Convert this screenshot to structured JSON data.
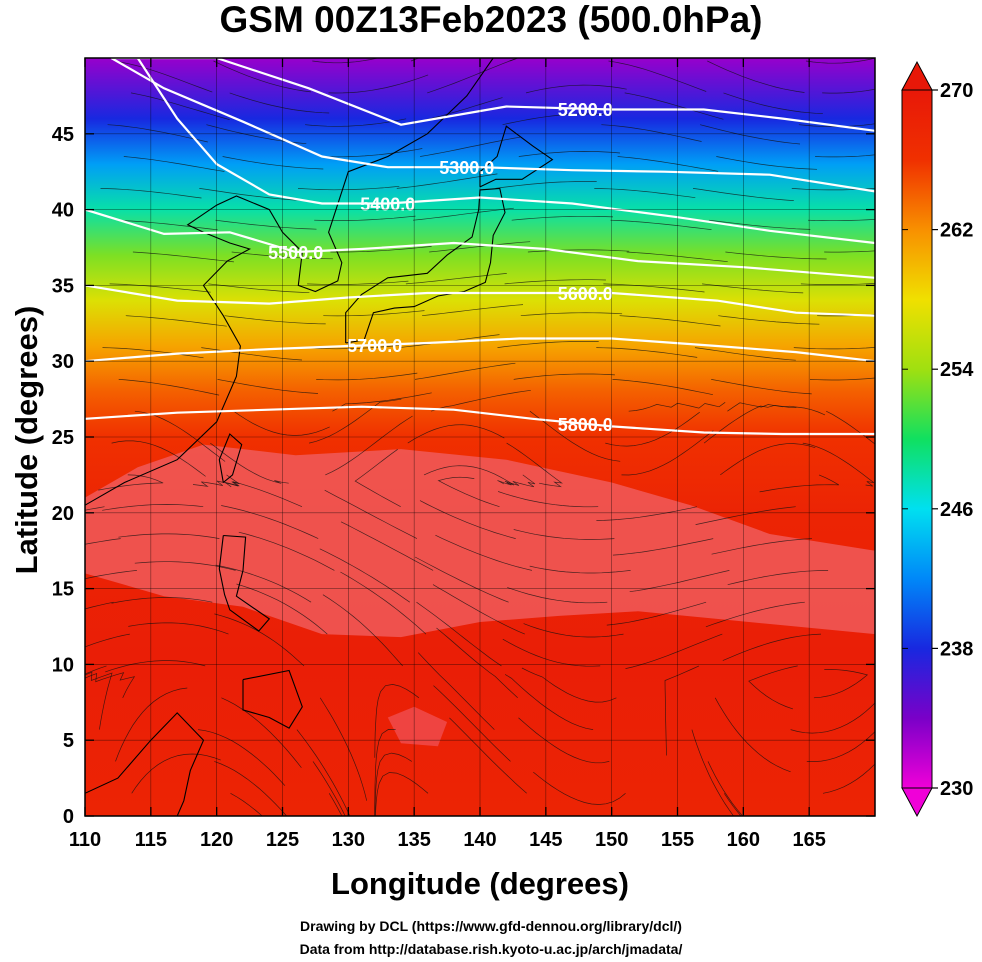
{
  "title": "GSM 00Z13Feb2023 (500.0hPa)",
  "xlabel": "Longitude (degrees)",
  "ylabel": "Latitude  (degrees)",
  "credits": [
    "Drawing by DCL (https://www.gfd-dennou.org/library/dcl/)",
    "Data from http://database.rish.kyoto-u.ac.jp/arch/jmadata/"
  ],
  "chart_data": {
    "type": "heatmap",
    "title": "GSM 00Z13Feb2023 (500.0hPa)",
    "xlabel": "Longitude (degrees)",
    "ylabel": "Latitude  (degrees)",
    "xlim": [
      110,
      170
    ],
    "ylim": [
      0,
      50
    ],
    "x_ticks": [
      110,
      115,
      120,
      125,
      130,
      135,
      140,
      145,
      150,
      155,
      160,
      165
    ],
    "y_ticks": [
      0,
      5,
      10,
      15,
      20,
      25,
      30,
      35,
      40,
      45
    ],
    "grid": true,
    "field": "temperature",
    "colorbar": {
      "min": 230,
      "max": 270,
      "ticks": [
        230,
        238,
        246,
        254,
        262,
        270
      ],
      "colors": [
        "#f000d8",
        "#7a00c8",
        "#1828e0",
        "#0088f8",
        "#00e0f0",
        "#10e060",
        "#a0e010",
        "#f0e000",
        "#f89000",
        "#f03000",
        "#e81808"
      ]
    },
    "temperature_bands": [
      {
        "lat": 0,
        "value": 268
      },
      {
        "lat": 10,
        "value": 269
      },
      {
        "lat": 20,
        "value": 268
      },
      {
        "lat": 25,
        "value": 266
      },
      {
        "lat": 28,
        "value": 264
      },
      {
        "lat": 31,
        "value": 261
      },
      {
        "lat": 34,
        "value": 257
      },
      {
        "lat": 37,
        "value": 253
      },
      {
        "lat": 40,
        "value": 248
      },
      {
        "lat": 43,
        "value": 243
      },
      {
        "lat": 46,
        "value": 238
      },
      {
        "lat": 50,
        "value": 233
      }
    ],
    "contours": [
      {
        "label": "5200.0",
        "label_lon": 148,
        "points": [
          [
            112,
            50
          ],
          [
            120,
            50
          ],
          [
            127,
            48
          ],
          [
            134,
            45.6
          ],
          [
            142,
            46.8
          ],
          [
            150,
            46.6
          ],
          [
            157,
            46.6
          ],
          [
            163,
            46.0
          ],
          [
            170,
            45.2
          ]
        ]
      },
      {
        "label": "5300.0",
        "label_lon": 139,
        "points": [
          [
            112,
            50
          ],
          [
            116,
            48
          ],
          [
            122,
            45.8
          ],
          [
            128,
            43.5
          ],
          [
            133,
            42.8
          ],
          [
            140,
            42.8
          ],
          [
            147,
            42.6
          ],
          [
            154,
            42.5
          ],
          [
            162,
            42.3
          ],
          [
            170,
            41.2
          ]
        ]
      },
      {
        "label": "5400.0",
        "label_lon": 133,
        "points": [
          [
            114,
            50
          ],
          [
            117,
            46
          ],
          [
            120,
            43
          ],
          [
            124,
            41
          ],
          [
            128,
            40.4
          ],
          [
            133,
            40.4
          ],
          [
            140,
            40.8
          ],
          [
            147,
            40.4
          ],
          [
            155,
            39.5
          ],
          [
            162,
            38.6
          ],
          [
            170,
            37.8
          ]
        ]
      },
      {
        "label": "5500.0",
        "label_lon": 126,
        "points": [
          [
            110,
            40
          ],
          [
            116,
            38.4
          ],
          [
            121,
            38.5
          ],
          [
            126,
            37.2
          ],
          [
            131,
            37.4
          ],
          [
            138,
            37.8
          ],
          [
            145,
            37.4
          ],
          [
            152,
            36.6
          ],
          [
            160,
            36.2
          ],
          [
            170,
            35.5
          ]
        ]
      },
      {
        "label": "5600.0",
        "label_lon": 148,
        "points": [
          [
            110,
            35.0
          ],
          [
            117,
            34.0
          ],
          [
            124,
            33.8
          ],
          [
            130,
            34.2
          ],
          [
            136,
            34.5
          ],
          [
            142,
            34.5
          ],
          [
            150,
            34.5
          ],
          [
            158,
            34.0
          ],
          [
            164,
            33.2
          ],
          [
            170,
            33.0
          ]
        ]
      },
      {
        "label": "5700.0",
        "label_lon": 132,
        "points": [
          [
            110,
            30.0
          ],
          [
            117,
            30.5
          ],
          [
            124,
            30.8
          ],
          [
            130,
            31.0
          ],
          [
            136,
            31.2
          ],
          [
            143,
            31.5
          ],
          [
            150,
            31.5
          ],
          [
            158,
            31.0
          ],
          [
            164,
            30.6
          ],
          [
            170,
            30.0
          ]
        ]
      },
      {
        "label": "5800.0",
        "label_lon": 148,
        "points": [
          [
            110,
            26.2
          ],
          [
            117,
            26.6
          ],
          [
            124,
            26.8
          ],
          [
            131,
            27.0
          ],
          [
            138,
            26.8
          ],
          [
            144,
            26.2
          ],
          [
            150,
            25.7
          ],
          [
            157,
            25.3
          ],
          [
            163,
            25.2
          ],
          [
            170,
            25.2
          ]
        ]
      }
    ]
  }
}
